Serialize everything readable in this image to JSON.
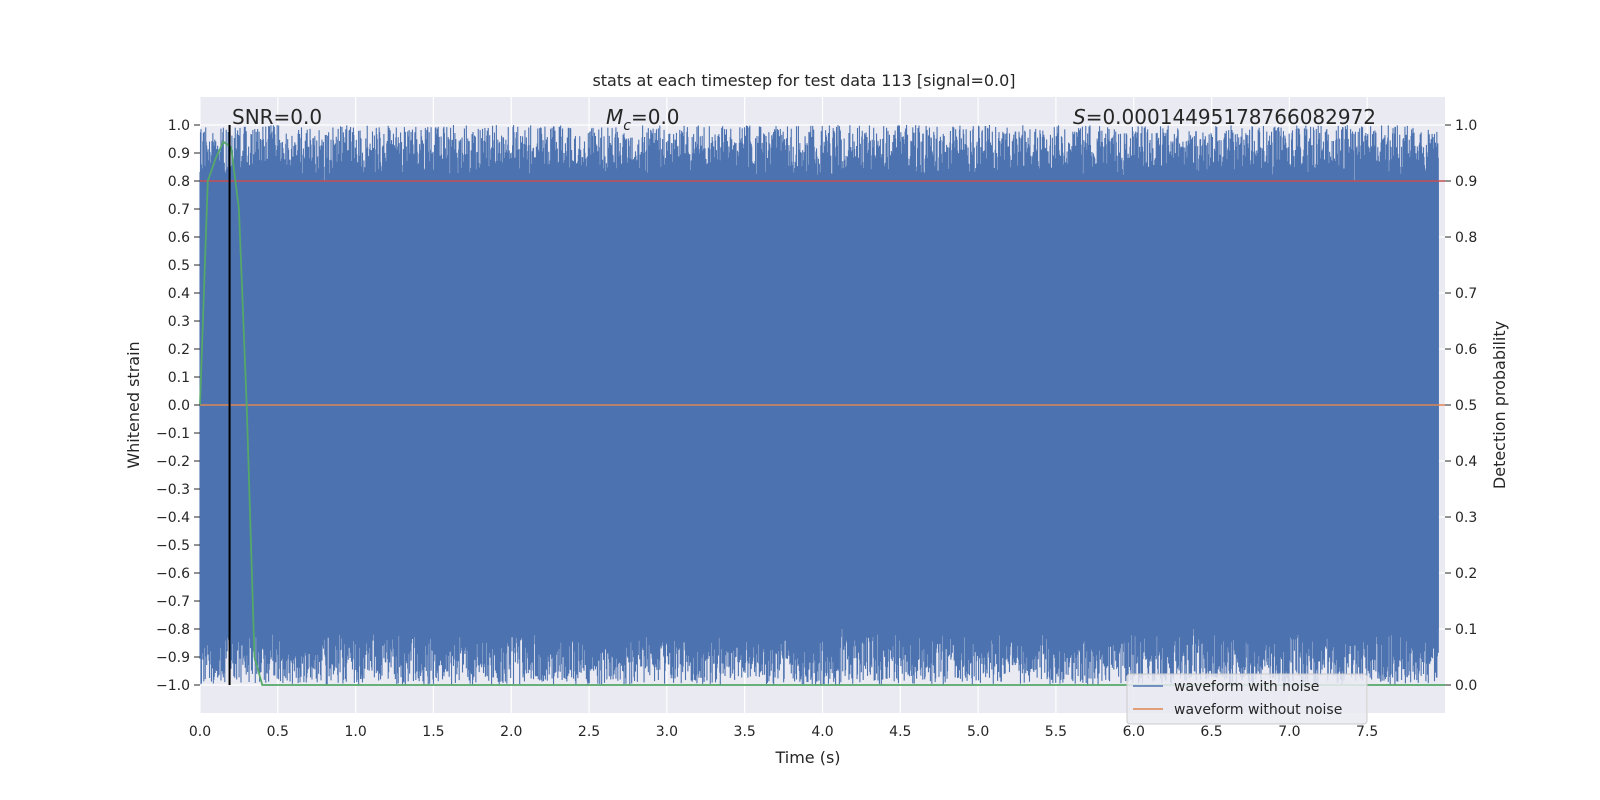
{
  "chart_data": {
    "type": "line",
    "title": "stats at each timestep for test data 113 [signal=0.0]",
    "xlabel": "Time (s)",
    "ylabel": "Whitened strain",
    "ylabel_right": "Detection probability",
    "xlim": [
      0.0,
      8.0
    ],
    "ylim": [
      -1.1,
      1.1
    ],
    "ylim_right": [
      -0.05,
      1.05
    ],
    "x_ticks": [
      "0.0",
      "0.5",
      "1.0",
      "1.5",
      "2.0",
      "2.5",
      "3.0",
      "3.5",
      "4.0",
      "4.5",
      "5.0",
      "5.5",
      "6.0",
      "6.5",
      "7.0",
      "7.5"
    ],
    "y_ticks": [
      "1.0",
      "0.9",
      "0.8",
      "0.7",
      "0.6",
      "0.5",
      "0.4",
      "0.3",
      "0.2",
      "0.1",
      "0.0",
      "−0.1",
      "−0.2",
      "−0.3",
      "−0.4",
      "−0.5",
      "−0.6",
      "−0.7",
      "−0.8",
      "−0.9",
      "−1.0"
    ],
    "y_ticks_right": [
      "1.0",
      "0.9",
      "0.8",
      "0.7",
      "0.6",
      "0.5",
      "0.4",
      "0.3",
      "0.2",
      "0.1",
      "0.0"
    ],
    "grid": true,
    "legend_position": "lower-right",
    "series": [
      {
        "name": "waveform with noise",
        "color": "#4c72b0",
        "description_values": "dense noise spanning -1.0 to 1.0"
      },
      {
        "name": "waveform without noise",
        "color": "#dd8452",
        "x": [
          0.0,
          8.0
        ],
        "y": [
          0.0,
          0.0
        ]
      },
      {
        "color": "#55a868",
        "axis": "right",
        "x": [
          0.0,
          0.05,
          0.1,
          0.15,
          0.2,
          0.25,
          0.3,
          0.35,
          0.4,
          0.5,
          1.0,
          2.0,
          4.0,
          6.0,
          8.0
        ],
        "y": [
          0.5,
          0.9,
          0.94,
          0.97,
          0.96,
          0.85,
          0.5,
          0.05,
          0.0,
          0.0,
          0.0,
          0.0,
          0.0,
          0.0,
          0.0
        ]
      },
      {
        "color": "#c44e52",
        "axis": "right",
        "x": [
          0.0,
          8.0
        ],
        "y": [
          0.9,
          0.9
        ]
      }
    ],
    "vline": {
      "x": 0.19,
      "color": "#000000"
    },
    "annotations": {
      "snr": "SNR=0.0",
      "mc_symbol": "M",
      "mc_sub": "c",
      "mc_value": "=0.0",
      "s_symbol": "S",
      "s_value": "=0.00014495178766082972"
    }
  }
}
